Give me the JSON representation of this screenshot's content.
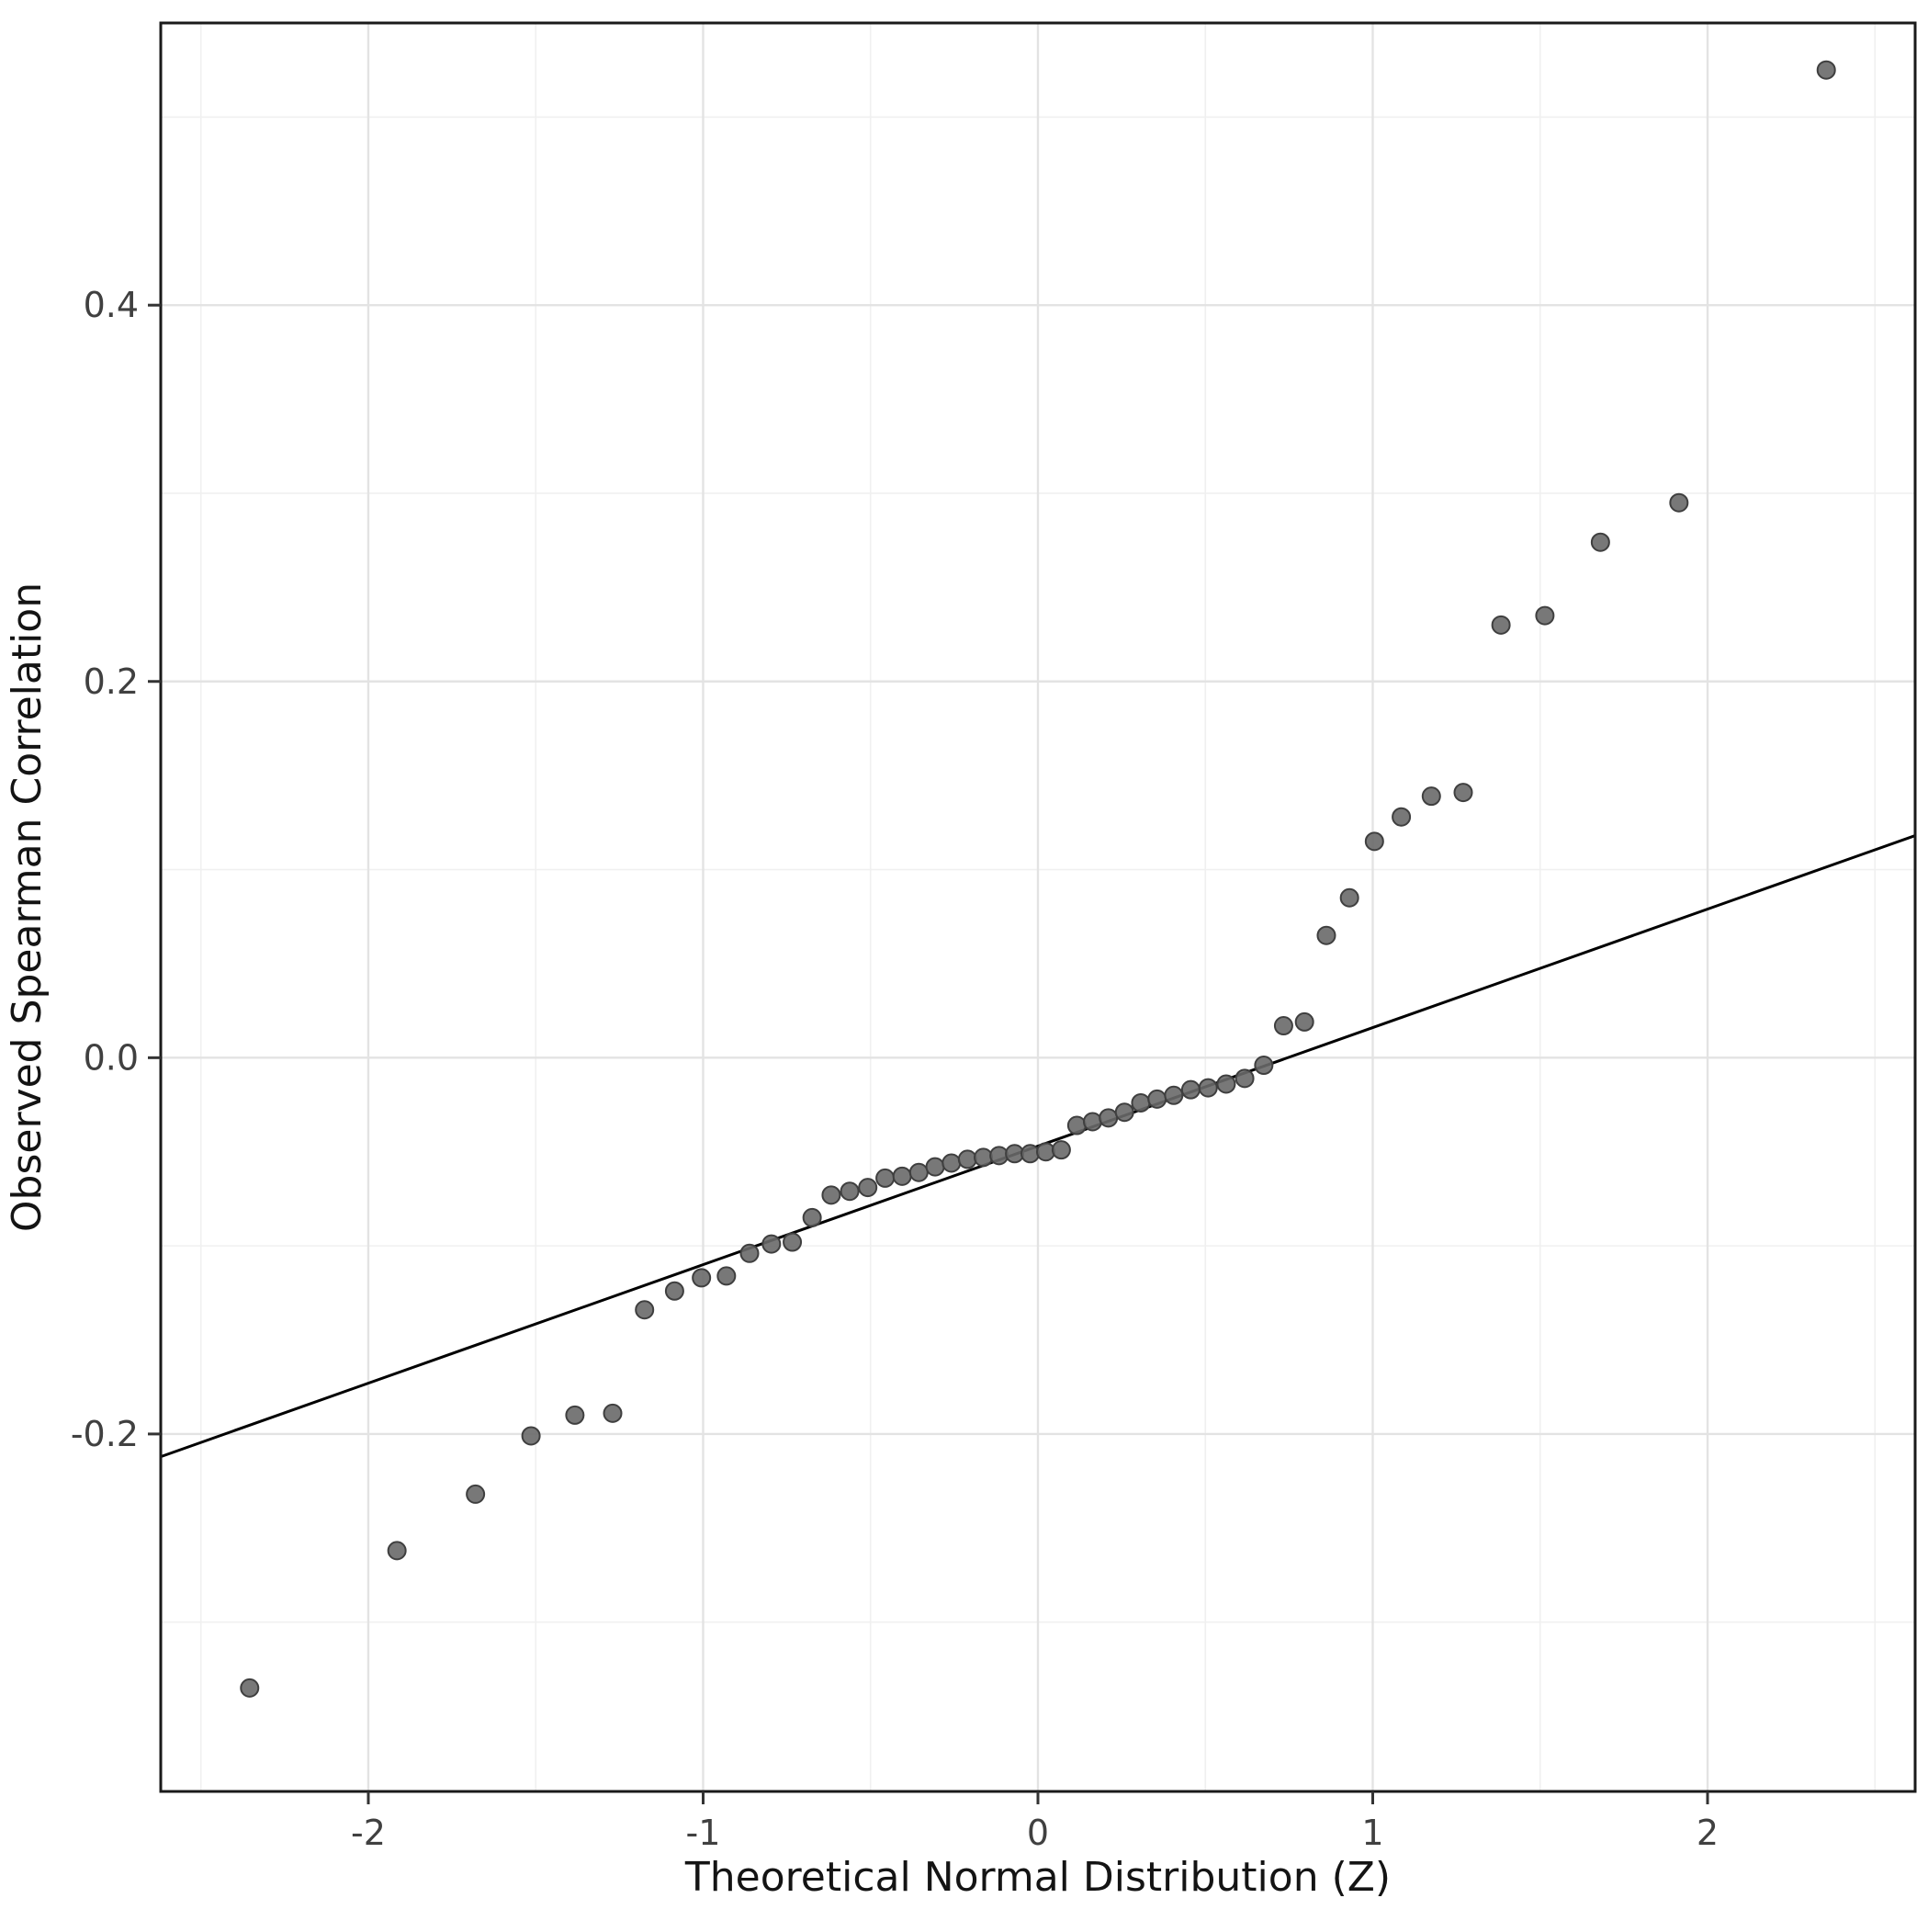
{
  "chart_data": {
    "type": "scatter",
    "title": "",
    "xlabel": "Theoretical Normal Distribution (Z)",
    "ylabel": "Observed Spearman Correlation",
    "xlim": [
      -2.62,
      2.62
    ],
    "ylim": [
      -0.39,
      0.55
    ],
    "x_ticks": [
      -2,
      -1,
      0,
      1,
      2
    ],
    "x_tick_labels": [
      "-2",
      "-1",
      "0",
      "1",
      "2"
    ],
    "y_ticks": [
      -0.2,
      0.0,
      0.2,
      0.4
    ],
    "y_tick_labels": [
      "-0.2",
      "0.0",
      "0.2",
      "0.4"
    ],
    "x_minor_ticks": [
      -2.5,
      -1.5,
      -0.5,
      0.5,
      1.5,
      2.5
    ],
    "y_minor_ticks": [
      -0.3,
      -0.1,
      0.1,
      0.3,
      0.5
    ],
    "grid": true,
    "legend_position": "none",
    "reference_line": {
      "slope": 0.063,
      "intercept": -0.047
    },
    "series": [
      {
        "name": "qq-points",
        "points": [
          [
            -2.3545,
            -0.335
          ],
          [
            -1.9145,
            -0.262
          ],
          [
            -1.68,
            -0.232
          ],
          [
            -1.5141,
            -0.201
          ],
          [
            -1.383,
            -0.19
          ],
          [
            -1.2702,
            -0.189
          ],
          [
            -1.175,
            -0.134
          ],
          [
            -1.0853,
            -0.124
          ],
          [
            -1.005,
            -0.117
          ],
          [
            -0.9305,
            -0.116
          ],
          [
            -0.8614,
            -0.104
          ],
          [
            -0.7961,
            -0.099
          ],
          [
            -0.7337,
            -0.098
          ],
          [
            -0.6745,
            -0.085
          ],
          [
            -0.6175,
            -0.073
          ],
          [
            -0.5622,
            -0.071
          ],
          [
            -0.5083,
            -0.069
          ],
          [
            -0.4565,
            -0.064
          ],
          [
            -0.4056,
            -0.063
          ],
          [
            -0.3558,
            -0.061
          ],
          [
            -0.3071,
            -0.058
          ],
          [
            -0.2585,
            -0.056
          ],
          [
            -0.2104,
            -0.054
          ],
          [
            -0.1632,
            -0.053
          ],
          [
            -0.1162,
            -0.052
          ],
          [
            -0.0697,
            -0.051
          ],
          [
            -0.0233,
            -0.051
          ],
          [
            0.0233,
            -0.05
          ],
          [
            0.0697,
            -0.049
          ],
          [
            0.1162,
            -0.036
          ],
          [
            0.1632,
            -0.034
          ],
          [
            0.2104,
            -0.032
          ],
          [
            0.2585,
            -0.029
          ],
          [
            0.3071,
            -0.024
          ],
          [
            0.3558,
            -0.022
          ],
          [
            0.4056,
            -0.02
          ],
          [
            0.4565,
            -0.017
          ],
          [
            0.5083,
            -0.016
          ],
          [
            0.5622,
            -0.014
          ],
          [
            0.6175,
            -0.011
          ],
          [
            0.6745,
            -0.004
          ],
          [
            0.7337,
            0.017
          ],
          [
            0.7961,
            0.019
          ],
          [
            0.8614,
            0.065
          ],
          [
            0.9305,
            0.085
          ],
          [
            1.005,
            0.115
          ],
          [
            1.0853,
            0.128
          ],
          [
            1.175,
            0.139
          ],
          [
            1.2702,
            0.141
          ],
          [
            1.383,
            0.23
          ],
          [
            1.5141,
            0.235
          ],
          [
            1.68,
            0.274
          ],
          [
            1.9145,
            0.295
          ],
          [
            2.3545,
            0.525
          ]
        ]
      }
    ]
  },
  "style": {
    "background": "#ffffff",
    "panel_background": "#ffffff",
    "grid_major_color": "#e3e3e3",
    "grid_minor_color": "#f0f0f0",
    "panel_border_color": "#1a1a1a",
    "point_fill": "#696969",
    "point_stroke": "#3f3f3f",
    "reference_line_color": "#000000",
    "tick_mark_color": "#333333",
    "tick_label_color": "#404040",
    "axis_title_color": "#141414"
  }
}
